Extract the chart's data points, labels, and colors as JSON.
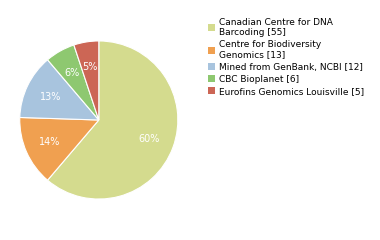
{
  "labels": [
    "Canadian Centre for DNA\nBarcoding [55]",
    "Centre for Biodiversity\nGenomics [13]",
    "Mined from GenBank, NCBI [12]",
    "CBC Bioplanet [6]",
    "Eurofins Genomics Louisville [5]"
  ],
  "values": [
    60,
    14,
    13,
    6,
    5
  ],
  "colors": [
    "#d4db8e",
    "#f0a050",
    "#a8c4de",
    "#8ec870",
    "#cc6655"
  ],
  "pct_labels": [
    "60%",
    "14%",
    "13%",
    "6%",
    "5%"
  ],
  "legend_labels": [
    "Canadian Centre for DNA\nBarcoding [55]",
    "Centre for Biodiversity\nGenomics [13]",
    "Mined from GenBank, NCBI [12]",
    "CBC Bioplanet [6]",
    "Eurofins Genomics Louisville [5]"
  ],
  "text_color": "white",
  "fontsize": 7.0,
  "legend_fontsize": 6.5,
  "background_color": "#ffffff"
}
